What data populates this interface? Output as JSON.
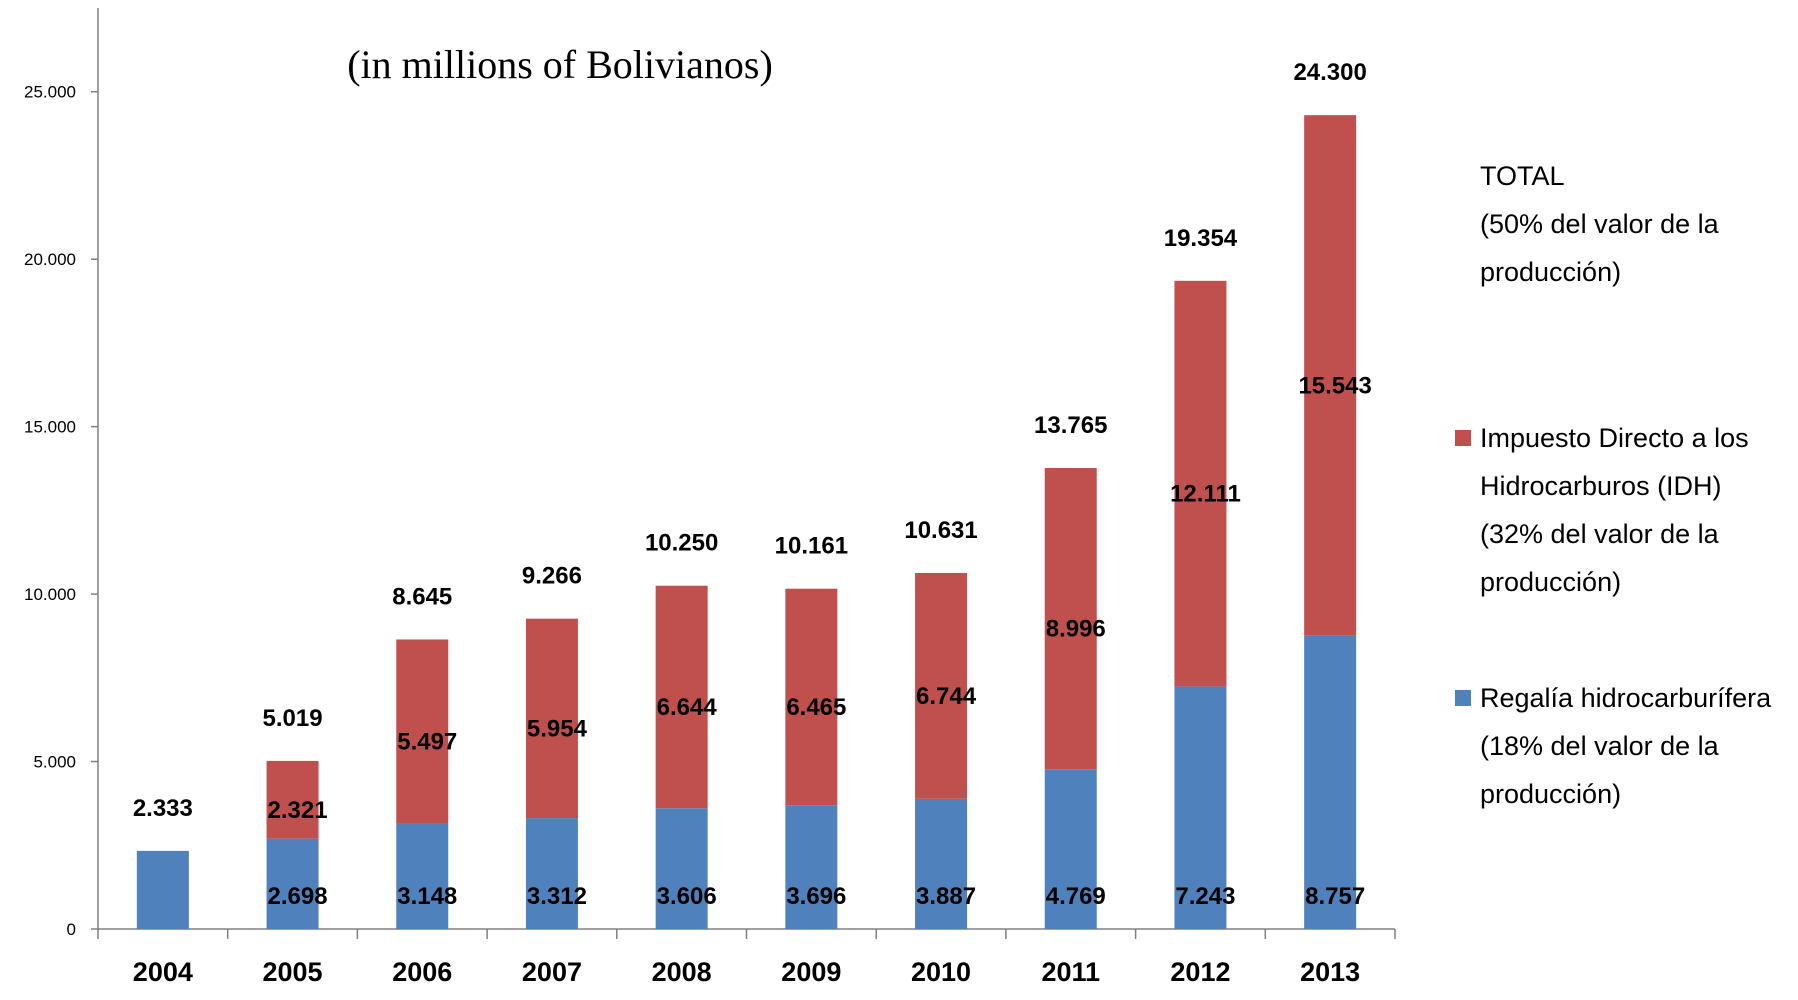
{
  "chart_data": {
    "type": "bar",
    "stacked": true,
    "title": "(in millions of Bolivianos)",
    "xlabel": "",
    "ylabel": "",
    "ylim": [
      0,
      27500
    ],
    "yticks": [
      0,
      5000,
      10000,
      15000,
      20000,
      25000
    ],
    "ytick_labels": [
      "0",
      "5.000",
      "10.000",
      "15.000",
      "20.000",
      "25.000"
    ],
    "grid": false,
    "legend_position": "right",
    "categories": [
      "2004",
      "2005",
      "2006",
      "2007",
      "2008",
      "2009",
      "2010",
      "2011",
      "2012",
      "2013"
    ],
    "series": [
      {
        "legend_lines": [
          "Regalía hidrocarburífera",
          "(18% del valor de la",
          "producción)"
        ],
        "color": "#4f81bd",
        "values": [
          2333,
          2698,
          3148,
          3312,
          3606,
          3696,
          3887,
          4769,
          7243,
          8757
        ],
        "labels": [
          "",
          "2.698",
          "3.148",
          "3.312",
          "3.606",
          "3.696",
          "3.887",
          "4.769",
          "7.243",
          "8.757"
        ]
      },
      {
        "legend_lines": [
          "Impuesto Directo a los",
          "Hidrocarburos (IDH)",
          "(32% del valor de la",
          "producción)"
        ],
        "color": "#c0504d",
        "values": [
          0,
          2321,
          5497,
          5954,
          6644,
          6465,
          6744,
          8996,
          12111,
          15543
        ],
        "labels": [
          "",
          "2.321",
          "5.497",
          "5.954",
          "6.644",
          "6.465",
          "6.744",
          "8.996",
          "12.111",
          "15.543"
        ]
      }
    ],
    "totals": {
      "legend_lines": [
        "TOTAL",
        "(50% del valor de la",
        "producción)"
      ],
      "values": [
        2333,
        5019,
        8645,
        9266,
        10250,
        10161,
        10631,
        13765,
        19354,
        24300
      ],
      "labels": [
        "2.333",
        "5.019",
        "8.645",
        "9.266",
        "10.250",
        "10.161",
        "10.631",
        "13.765",
        "19.354",
        "24.300"
      ]
    }
  }
}
